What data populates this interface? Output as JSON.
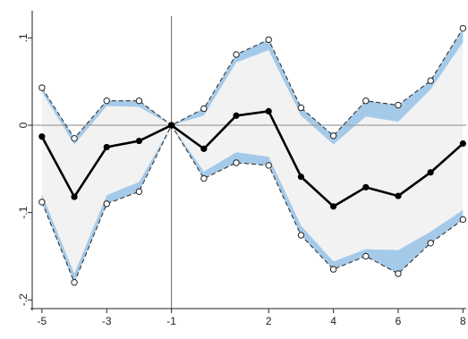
{
  "chart_data": {
    "type": "line",
    "x": [
      -5,
      -4,
      -3,
      -2,
      -1,
      0,
      1,
      2,
      3,
      4,
      5,
      6,
      7,
      8
    ],
    "series": [
      {
        "role": "point_estimate",
        "values": [
          -0.013,
          -0.082,
          -0.025,
          -0.018,
          0.0,
          -0.027,
          0.011,
          0.016,
          -0.059,
          -0.093,
          -0.071,
          -0.081,
          -0.054,
          -0.021
        ]
      },
      {
        "role": "upper_bound",
        "values": [
          0.043,
          -0.015,
          0.028,
          0.028,
          0.0,
          0.019,
          0.081,
          0.098,
          0.02,
          -0.012,
          0.028,
          0.023,
          0.051,
          0.111
        ]
      },
      {
        "role": "lower_bound",
        "values": [
          -0.088,
          -0.18,
          -0.09,
          -0.076,
          0.0,
          -0.061,
          -0.043,
          -0.046,
          -0.126,
          -0.165,
          -0.15,
          -0.17,
          -0.135,
          -0.108
        ]
      },
      {
        "role": "blue_band_upper_inner",
        "values": [
          0.038,
          -0.022,
          0.022,
          0.021,
          0.0,
          0.011,
          0.072,
          0.086,
          0.011,
          -0.022,
          0.01,
          0.004,
          0.041,
          0.095
        ]
      },
      {
        "role": "blue_band_lower_inner",
        "values": [
          -0.079,
          -0.17,
          -0.08,
          -0.065,
          0.0,
          -0.053,
          -0.031,
          -0.036,
          -0.115,
          -0.156,
          -0.142,
          -0.143,
          -0.122,
          -0.097
        ]
      }
    ],
    "xticks": [
      -5,
      -3,
      -1,
      2,
      4,
      6,
      8
    ],
    "xtick_labels": [
      "-5",
      "-3",
      "-1",
      "2",
      "4",
      "6",
      "8"
    ],
    "yticks": [
      0.1,
      0,
      -0.1,
      -0.2
    ],
    "ytick_labels": [
      ".1",
      "0",
      "-.1",
      "-.2"
    ],
    "xlim": [
      -5.3,
      8.1
    ],
    "ylim": [
      -0.21,
      0.125
    ],
    "reference_lines": {
      "x": -1,
      "y": 0
    },
    "grid": false,
    "colors": {
      "estimate": "#000000",
      "ci_fill": "#f2f2f2",
      "blue_band": "#a5cae9",
      "ci_border": "#333333",
      "zero_line": "#9e9e9e",
      "vline": "#555555"
    }
  }
}
